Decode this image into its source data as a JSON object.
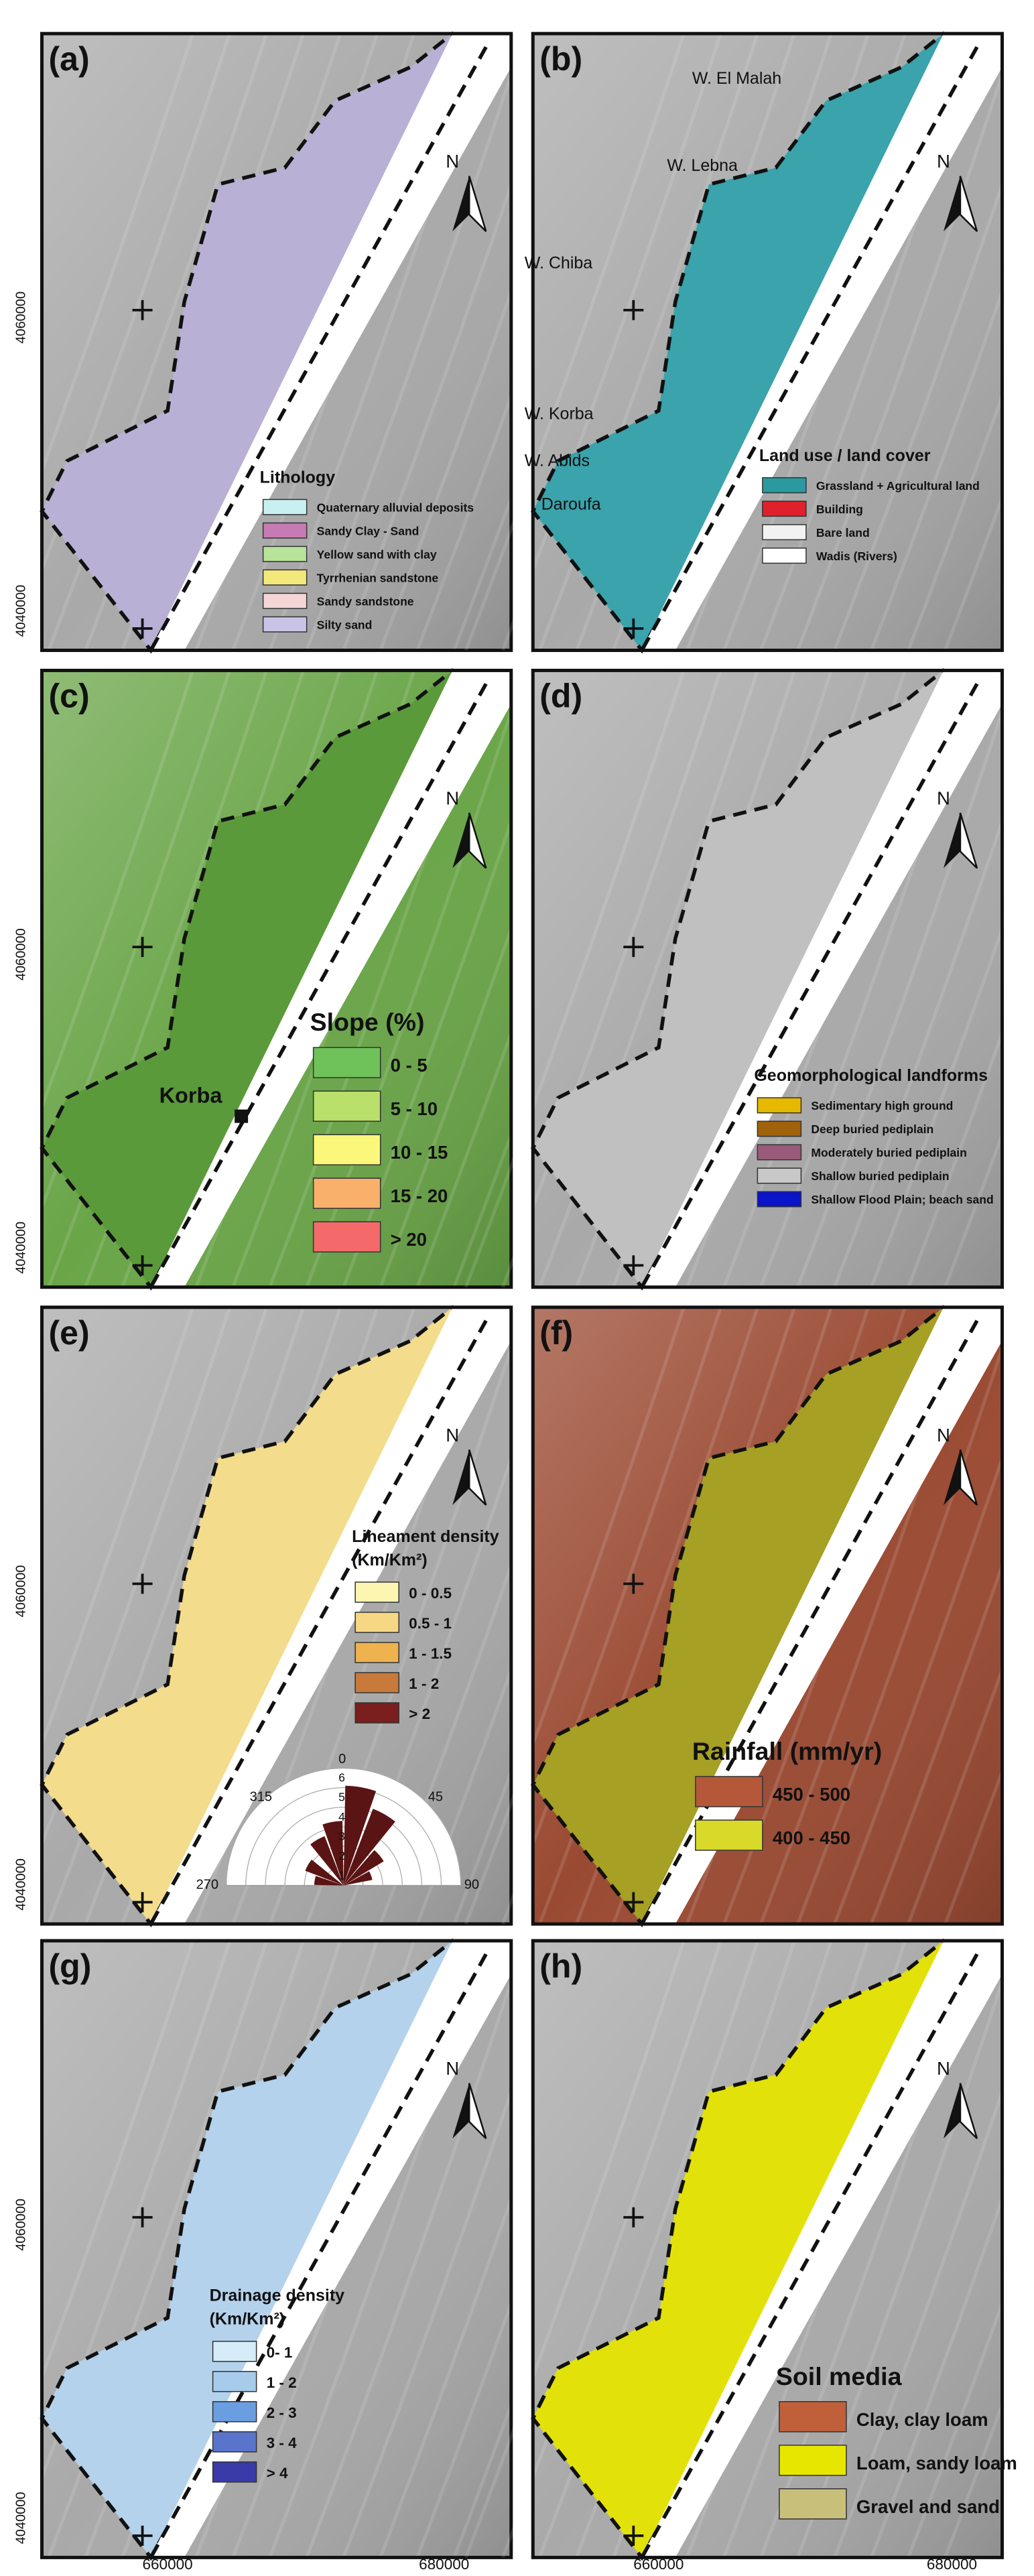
{
  "panels": [
    {
      "letter": "(a)",
      "legend_title": "Lithology",
      "background": "#a9a9a9",
      "fill": "#b9b0d6",
      "legend": [
        {
          "label": "Quaternary alluvial deposits",
          "color": "#c9f0f0"
        },
        {
          "label": "Sandy Clay - Sand",
          "color": "#c77bb4"
        },
        {
          "label": "Yellow sand with clay",
          "color": "#b7e39a"
        },
        {
          "label": "Tyrrhenian sandstone",
          "color": "#f3e97a"
        },
        {
          "label": "Sandy sandstone",
          "color": "#f4d6d6"
        },
        {
          "label": "Silty sand",
          "color": "#c9c3e6"
        }
      ]
    },
    {
      "letter": "(b)",
      "legend_title": "Land use / land cover",
      "background": "#a9a9a9",
      "fill": "#3aa3ab",
      "legend": [
        {
          "label": "Grassland + Agricultural land",
          "color": "#2a9aa0"
        },
        {
          "label": "Building",
          "color": "#e0202a"
        },
        {
          "label": "Bare land",
          "color": "#f2f2f2"
        },
        {
          "label": "Wadis (Rivers)",
          "color": "#ffffff"
        }
      ],
      "places": [
        "W. El Malah",
        "W. Lebna",
        "W. Chiba",
        "W. Korba",
        "W. Abids",
        "Daroufa"
      ]
    },
    {
      "letter": "(c)",
      "legend_title": "Slope (%)",
      "background": "#6aa548",
      "fill": "#5a9a3a",
      "legend": [
        {
          "label": "0 - 5",
          "color": "#6fc15a"
        },
        {
          "label": "5 - 10",
          "color": "#b8e06a"
        },
        {
          "label": "10 - 15",
          "color": "#fbf77a"
        },
        {
          "label": "15 - 20",
          "color": "#f8b06a"
        },
        {
          "label": "> 20",
          "color": "#f46a6a"
        }
      ],
      "places": [
        "Korba"
      ]
    },
    {
      "letter": "(d)",
      "legend_title": "Geomorphological landforms",
      "background": "#a9a9a9",
      "fill": "#c0c0c0",
      "legend": [
        {
          "label": "Sedimentary high ground",
          "color": "#e6b800"
        },
        {
          "label": "Deep buried pediplain",
          "color": "#a0620a"
        },
        {
          "label": "Moderately buried pediplain",
          "color": "#9a5a7a"
        },
        {
          "label": "Shallow buried pediplain",
          "color": "#c8c8c8"
        },
        {
          "label": "Shallow Flood Plain; beach sand",
          "color": "#0a14c8"
        }
      ]
    },
    {
      "letter": "(e)",
      "legend_title": "Lineament density",
      "legend_subtitle": "(Km/Km²)",
      "background": "#a9a9a9",
      "fill": "#f3dc8c",
      "legend": [
        {
          "label": "0 - 0.5",
          "color": "#fdf6b0"
        },
        {
          "label": "0.5 - 1",
          "color": "#f6d884"
        },
        {
          "label": "1 - 1.5",
          "color": "#eeb24e"
        },
        {
          "label": "1 - 2",
          "color": "#c77a3a"
        },
        {
          "label": "> 2",
          "color": "#7a1e1e"
        }
      ],
      "rose_labels": [
        "0",
        "45",
        "315",
        "270",
        "90"
      ],
      "rose_rings": [
        "6",
        "5",
        "4",
        "3",
        "2",
        "1"
      ]
    },
    {
      "letter": "(f)",
      "legend_title": "Rainfall (mm/yr)",
      "background": "#9a4a32",
      "fill": "#a6a024",
      "legend": [
        {
          "label": "450 - 500",
          "color": "#b5583a"
        },
        {
          "label": "400 - 450",
          "color": "#d9d92a"
        }
      ]
    },
    {
      "letter": "(g)",
      "legend_title": "Drainage density",
      "legend_subtitle": "(Km/Km²)",
      "background": "#a9a9a9",
      "fill": "#b4d2ec",
      "legend": [
        {
          "label": "0- 1",
          "color": "#d6ecf8"
        },
        {
          "label": "1 - 2",
          "color": "#a7cbea"
        },
        {
          "label": "2 - 3",
          "color": "#6b9ee0"
        },
        {
          "label": "3 - 4",
          "color": "#5a74cc"
        },
        {
          "label": "> 4",
          "color": "#3a3aa8"
        }
      ]
    },
    {
      "letter": "(h)",
      "legend_title": "Soil media",
      "background": "#a9a9a9",
      "fill": "#e2e20a",
      "legend": [
        {
          "label": "Clay, clay loam",
          "color": "#c0603a"
        },
        {
          "label": "Loam, sandy loam",
          "color": "#e6e600"
        },
        {
          "label": "Gravel and sand",
          "color": "#c8c07a"
        }
      ]
    }
  ],
  "north": "N",
  "y_labels": [
    "4060000",
    "4040000"
  ],
  "x_labels": [
    "660000",
    "680000"
  ]
}
